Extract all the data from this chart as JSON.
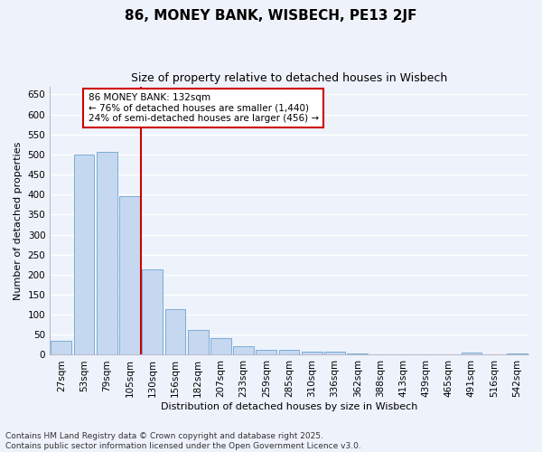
{
  "title": "86, MONEY BANK, WISBECH, PE13 2JF",
  "subtitle": "Size of property relative to detached houses in Wisbech",
  "xlabel": "Distribution of detached houses by size in Wisbech",
  "ylabel": "Number of detached properties",
  "categories": [
    "27sqm",
    "53sqm",
    "79sqm",
    "105sqm",
    "130sqm",
    "156sqm",
    "182sqm",
    "207sqm",
    "233sqm",
    "259sqm",
    "285sqm",
    "310sqm",
    "336sqm",
    "362sqm",
    "388sqm",
    "413sqm",
    "439sqm",
    "465sqm",
    "491sqm",
    "516sqm",
    "542sqm"
  ],
  "values": [
    35,
    500,
    507,
    397,
    213,
    113,
    63,
    41,
    21,
    13,
    12,
    8,
    8,
    4,
    2,
    1,
    1,
    0,
    5,
    0,
    3
  ],
  "bar_color": "#c5d8f0",
  "bar_edge_color": "#7aadd4",
  "vline_index": 4,
  "vline_color": "#cc0000",
  "annotation_text_line1": "86 MONEY BANK: 132sqm",
  "annotation_text_line2": "← 76% of detached houses are smaller (1,440)",
  "annotation_text_line3": "24% of semi-detached houses are larger (456) →",
  "annotation_box_color": "#ffffff",
  "annotation_box_edge_color": "#cc0000",
  "ylim": [
    0,
    670
  ],
  "yticks": [
    0,
    50,
    100,
    150,
    200,
    250,
    300,
    350,
    400,
    450,
    500,
    550,
    600,
    650
  ],
  "footer_line1": "Contains HM Land Registry data © Crown copyright and database right 2025.",
  "footer_line2": "Contains public sector information licensed under the Open Government Licence v3.0.",
  "background_color": "#eef2fb",
  "grid_color": "#ffffff",
  "title_fontsize": 11,
  "subtitle_fontsize": 9,
  "axis_label_fontsize": 8,
  "tick_fontsize": 7.5,
  "annotation_fontsize": 7.5,
  "footer_fontsize": 6.5
}
